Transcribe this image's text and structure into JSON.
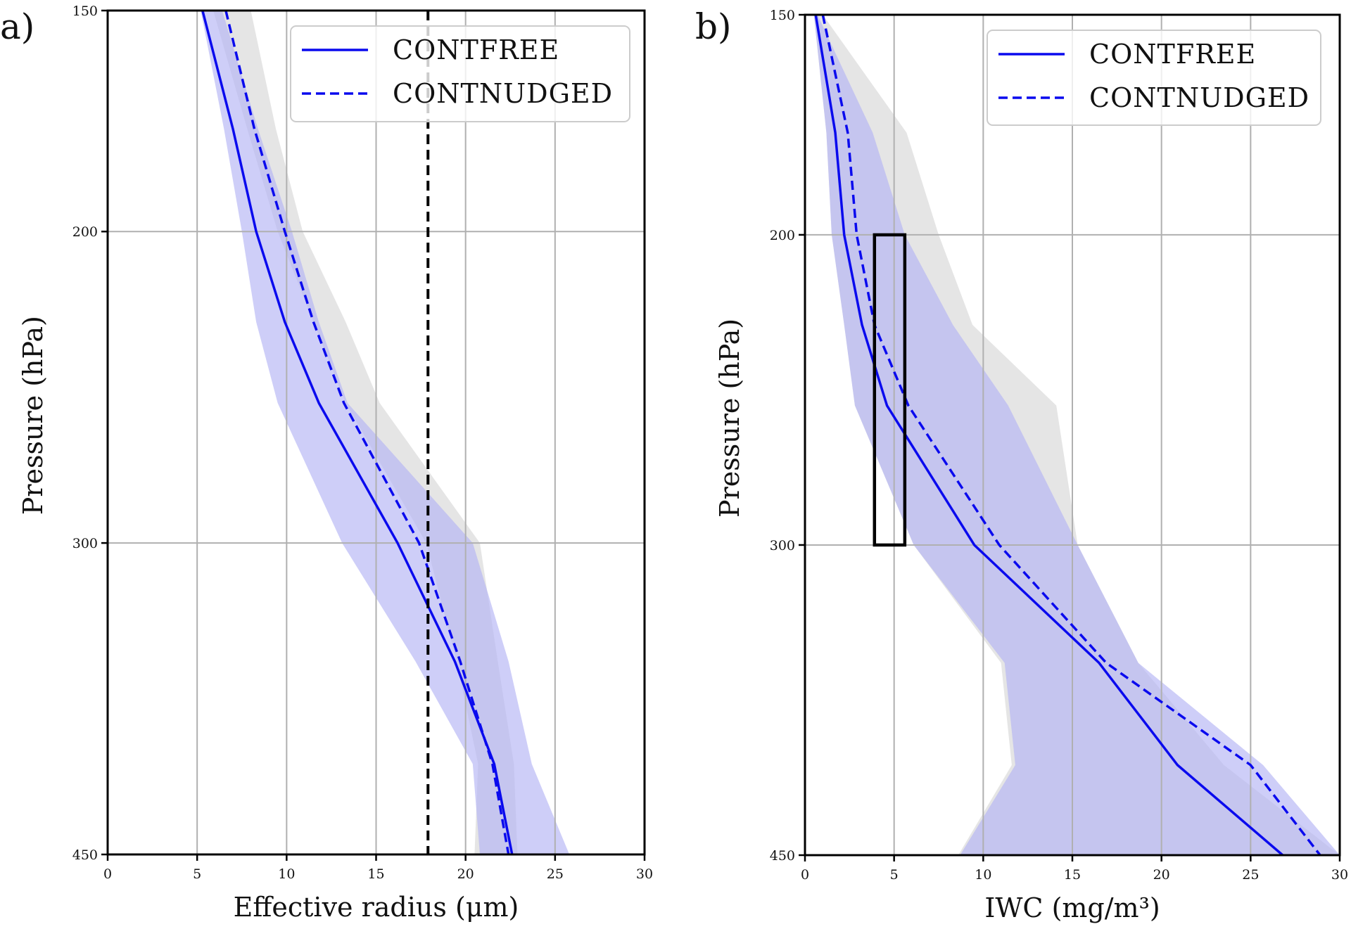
{
  "colors": {
    "line": "#0a0aee",
    "model_band": "#b3b3f5",
    "obs_band": "#dcdcdc",
    "grid": "#b0b0b0",
    "vline": "#000000",
    "box": "#000000"
  },
  "chart_data": [
    {
      "panel": "a)",
      "type": "line",
      "title": "",
      "xlabel": "Effective radius (μm)",
      "ylabel": "Pressure (hPa)",
      "xlim": [
        0,
        30
      ],
      "ylim": [
        150,
        450
      ],
      "y_scale": "log",
      "y_inverted": true,
      "grid": true,
      "legend_position": "top-right",
      "xticks": [
        "0",
        "5",
        "10",
        "15",
        "20",
        "25",
        "30"
      ],
      "yticks": [
        "150",
        "200",
        "300",
        "450"
      ],
      "y": [
        150,
        175,
        200,
        225,
        250,
        300,
        350,
        400,
        450
      ],
      "series": [
        {
          "name": "CONTFREE",
          "style": "solid",
          "values": [
            5.3,
            7.0,
            8.3,
            9.9,
            11.8,
            16.2,
            19.4,
            21.6,
            22.6
          ]
        },
        {
          "name": "CONTNUDGED",
          "style": "dashed",
          "values": [
            6.6,
            8.2,
            9.9,
            11.5,
            13.2,
            17.4,
            19.7,
            21.5,
            22.4
          ]
        }
      ],
      "bands": [
        {
          "name": "observations-range",
          "color": "gray",
          "lower": [
            5.9,
            7.8,
            9.5,
            11.5,
            13.3,
            17.8,
            19.5,
            20.7,
            20.5
          ],
          "upper": [
            8.0,
            9.4,
            10.9,
            13.3,
            15.2,
            20.8,
            21.8,
            22.7,
            22.9
          ]
        },
        {
          "name": "model-range",
          "color": "blue",
          "lower": [
            5.2,
            6.5,
            7.5,
            8.3,
            9.5,
            13.1,
            17.2,
            20.4,
            20.8
          ],
          "upper": [
            6.4,
            8.4,
            10.3,
            11.8,
            13.4,
            20.4,
            22.4,
            23.7,
            25.8
          ]
        }
      ],
      "annotations": [
        {
          "type": "vertical-dashed-line",
          "x": 17.9
        }
      ]
    },
    {
      "panel": "b)",
      "type": "line",
      "title": "",
      "xlabel": "IWC (mg/m³)",
      "ylabel": "Pressure (hPa)",
      "xlim": [
        0,
        30
      ],
      "ylim": [
        150,
        450
      ],
      "y_scale": "log",
      "y_inverted": true,
      "grid": true,
      "legend_position": "top-right",
      "xticks": [
        "0",
        "5",
        "10",
        "15",
        "20",
        "25",
        "30"
      ],
      "yticks": [
        "150",
        "200",
        "300",
        "450"
      ],
      "y": [
        150,
        175,
        200,
        225,
        250,
        300,
        350,
        400,
        450
      ],
      "series": [
        {
          "name": "CONTFREE",
          "style": "solid",
          "values": [
            0.6,
            1.7,
            2.2,
            3.2,
            4.6,
            9.5,
            16.5,
            20.9,
            26.8
          ]
        },
        {
          "name": "CONTNUDGED",
          "style": "dashed",
          "values": [
            1.0,
            2.4,
            2.9,
            3.9,
            5.8,
            10.9,
            16.9,
            25.0,
            28.9
          ]
        }
      ],
      "bands": [
        {
          "name": "observations-range",
          "color": "gray",
          "lower": [
            0.5,
            1.2,
            1.5,
            2.2,
            2.8,
            6.1,
            11.0,
            11.6,
            8.6
          ],
          "upper": [
            1.0,
            5.7,
            7.5,
            9.4,
            14.1,
            15.3,
            18.7,
            23.5,
            30.0
          ]
        },
        {
          "name": "model-range",
          "color": "blue",
          "lower": [
            0.5,
            1.2,
            1.5,
            2.2,
            2.8,
            6.1,
            11.2,
            11.8,
            8.7
          ],
          "upper": [
            0.7,
            3.8,
            5.6,
            8.3,
            11.4,
            15.3,
            18.7,
            25.7,
            30.0
          ]
        }
      ],
      "annotations": [
        {
          "type": "rectangle",
          "x": [
            3.9,
            5.6
          ],
          "y": [
            200,
            300
          ]
        }
      ]
    }
  ]
}
